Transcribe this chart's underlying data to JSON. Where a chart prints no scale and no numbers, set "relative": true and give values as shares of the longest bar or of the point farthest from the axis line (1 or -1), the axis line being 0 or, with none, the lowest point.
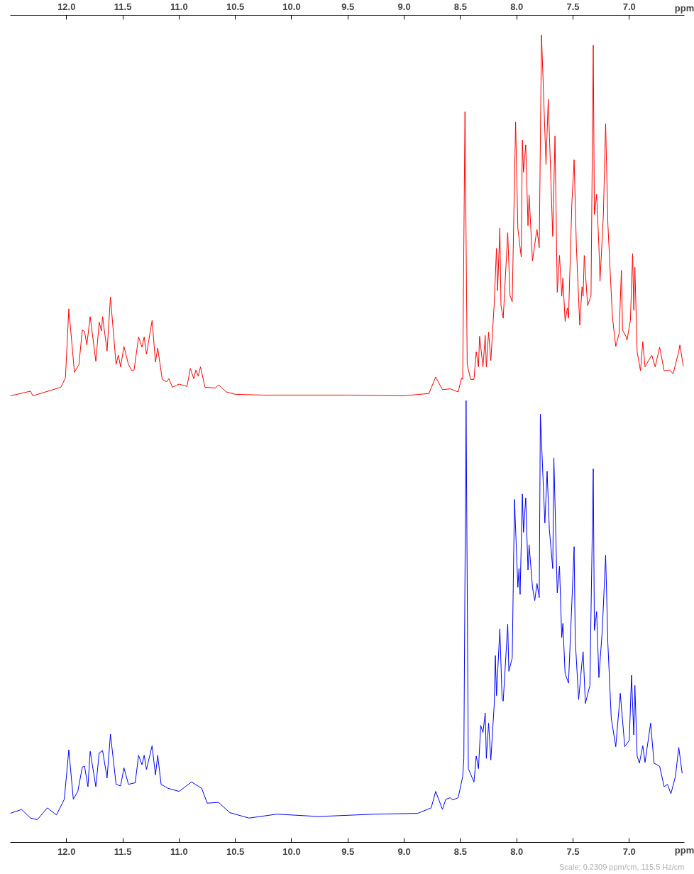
{
  "chart_data": {
    "type": "line",
    "relative": true,
    "xlabel": "ppm",
    "x2label": "ppm",
    "xlim": [
      12.5,
      6.51
    ],
    "x2lim": [
      12.5,
      6.51
    ],
    "xticks": [
      {
        "value": 12.0,
        "label": "12.0"
      },
      {
        "value": 11.5,
        "label": "11.5"
      },
      {
        "value": 11.0,
        "label": "11.0"
      },
      {
        "value": 10.5,
        "label": "10.5"
      },
      {
        "value": 10.0,
        "label": "10.0"
      },
      {
        "value": 9.5,
        "label": "9.5"
      },
      {
        "value": 9.0,
        "label": "9.0"
      },
      {
        "value": 8.5,
        "label": "8.5"
      },
      {
        "value": 8.0,
        "label": "8.0"
      },
      {
        "value": 7.5,
        "label": "7.5"
      },
      {
        "value": 7.0,
        "label": "7.0"
      }
    ],
    "x2ticks": [
      {
        "value": 12.0,
        "label": "12.0"
      },
      {
        "value": 11.5,
        "label": "11.5"
      },
      {
        "value": 11.0,
        "label": "11.0"
      },
      {
        "value": 10.5,
        "label": "10.5"
      },
      {
        "value": 10.0,
        "label": "10.0"
      },
      {
        "value": 9.5,
        "label": "9.5"
      },
      {
        "value": 9.0,
        "label": "9.0"
      },
      {
        "value": 8.5,
        "label": "8.5"
      },
      {
        "value": 8.0,
        "label": "8.0"
      },
      {
        "value": 7.5,
        "label": "7.5"
      },
      {
        "value": 7.0,
        "label": "7.0"
      }
    ],
    "series": [
      {
        "color": "#ff0000",
        "x": [
          12.5,
          12.32,
          12.3,
          12.12,
          12.05,
          12.01,
          11.98,
          11.93,
          11.89,
          11.86,
          11.84,
          11.82,
          11.79,
          11.74,
          11.71,
          11.69,
          11.68,
          11.64,
          11.61,
          11.56,
          11.54,
          11.52,
          11.49,
          11.45,
          11.42,
          11.4,
          11.36,
          11.33,
          11.31,
          11.29,
          11.24,
          11.21,
          11.19,
          11.15,
          11.11,
          11.09,
          11.06,
          11.0,
          10.93,
          10.9,
          10.87,
          10.85,
          10.83,
          10.81,
          10.77,
          10.68,
          10.65,
          10.58,
          10.5,
          10.25,
          10.0,
          9.51,
          9.01,
          8.78,
          8.72,
          8.66,
          8.59,
          8.52,
          8.49,
          8.48,
          8.46,
          8.44,
          8.41,
          8.38,
          8.36,
          8.34,
          8.33,
          8.3,
          8.28,
          8.27,
          8.25,
          8.23,
          8.2,
          8.18,
          8.17,
          8.15,
          8.14,
          8.12,
          8.08,
          8.06,
          8.04,
          8.01,
          7.99,
          7.96,
          7.95,
          7.94,
          7.92,
          7.9,
          7.89,
          7.86,
          7.83,
          7.82,
          7.8,
          7.78,
          7.74,
          7.72,
          7.68,
          7.66,
          7.64,
          7.62,
          7.6,
          7.59,
          7.57,
          7.55,
          7.54,
          7.51,
          7.49,
          7.47,
          7.44,
          7.42,
          7.41,
          7.4,
          7.37,
          7.34,
          7.32,
          7.31,
          7.29,
          7.27,
          7.26,
          7.23,
          7.21,
          7.19,
          7.15,
          7.12,
          7.09,
          7.07,
          7.06,
          7.03,
          7.02,
          6.99,
          6.97,
          6.96,
          6.95,
          6.93,
          6.9,
          6.88,
          6.86,
          6.8,
          6.77,
          6.73,
          6.69,
          6.64,
          6.61,
          6.56,
          6.55,
          6.52
        ],
        "values": [
          0.54,
          0.546,
          0.54,
          0.548,
          0.551,
          0.563,
          0.651,
          0.57,
          0.58,
          0.624,
          0.622,
          0.605,
          0.641,
          0.584,
          0.634,
          0.623,
          0.641,
          0.597,
          0.666,
          0.58,
          0.592,
          0.577,
          0.603,
          0.58,
          0.572,
          0.573,
          0.615,
          0.602,
          0.615,
          0.593,
          0.636,
          0.583,
          0.601,
          0.561,
          0.558,
          0.562,
          0.551,
          0.555,
          0.552,
          0.575,
          0.562,
          0.573,
          0.565,
          0.577,
          0.551,
          0.55,
          0.554,
          0.545,
          0.542,
          0.541,
          0.541,
          0.541,
          0.54,
          0.543,
          0.564,
          0.548,
          0.549,
          0.545,
          0.563,
          0.561,
          0.902,
          0.58,
          0.561,
          0.561,
          0.596,
          0.577,
          0.616,
          0.577,
          0.617,
          0.577,
          0.621,
          0.585,
          0.658,
          0.728,
          0.674,
          0.754,
          0.655,
          0.639,
          0.748,
          0.668,
          0.66,
          0.889,
          0.753,
          0.717,
          0.866,
          0.825,
          0.86,
          0.757,
          0.796,
          0.712,
          0.743,
          0.752,
          0.729,
          1.0,
          0.835,
          0.918,
          0.743,
          0.871,
          0.672,
          0.719,
          0.667,
          0.69,
          0.635,
          0.652,
          0.639,
          0.786,
          0.841,
          0.731,
          0.63,
          0.679,
          0.667,
          0.719,
          0.655,
          0.668,
          0.987,
          0.771,
          0.797,
          0.731,
          0.686,
          0.771,
          0.887,
          0.759,
          0.641,
          0.603,
          0.62,
          0.7,
          0.624,
          0.616,
          0.611,
          0.636,
          0.721,
          0.649,
          0.704,
          0.596,
          0.572,
          0.609,
          0.577,
          0.592,
          0.577,
          0.602,
          0.572,
          0.573,
          0.568,
          0.597,
          0.605,
          0.578
        ]
      },
      {
        "color": "#0000ff",
        "x": [
          12.5,
          12.4,
          12.32,
          12.26,
          12.17,
          12.09,
          12.02,
          11.98,
          11.94,
          11.9,
          11.86,
          11.84,
          11.81,
          11.79,
          11.74,
          11.71,
          11.68,
          11.64,
          11.61,
          11.56,
          11.52,
          11.49,
          11.45,
          11.39,
          11.36,
          11.33,
          11.31,
          11.29,
          11.24,
          11.21,
          11.19,
          11.16,
          11.1,
          11.0,
          10.89,
          10.8,
          10.75,
          10.65,
          10.55,
          10.38,
          10.13,
          9.76,
          9.26,
          8.88,
          8.76,
          8.72,
          8.66,
          8.63,
          8.59,
          8.57,
          8.52,
          8.48,
          8.47,
          8.45,
          8.43,
          8.38,
          8.36,
          8.34,
          8.32,
          8.3,
          8.28,
          8.27,
          8.25,
          8.23,
          8.2,
          8.19,
          8.18,
          8.15,
          8.13,
          8.12,
          8.08,
          8.07,
          8.04,
          8.02,
          7.99,
          7.98,
          7.97,
          7.95,
          7.94,
          7.92,
          7.9,
          7.89,
          7.86,
          7.84,
          7.82,
          7.8,
          7.79,
          7.75,
          7.73,
          7.71,
          7.68,
          7.67,
          7.64,
          7.62,
          7.6,
          7.59,
          7.57,
          7.54,
          7.51,
          7.49,
          7.48,
          7.45,
          7.42,
          7.41,
          7.39,
          7.35,
          7.32,
          7.31,
          7.29,
          7.27,
          7.24,
          7.21,
          7.19,
          7.16,
          7.12,
          7.08,
          7.04,
          7.0,
          6.98,
          6.96,
          6.95,
          6.93,
          6.91,
          6.88,
          6.86,
          6.81,
          6.78,
          6.73,
          6.69,
          6.66,
          6.63,
          6.59,
          6.56,
          6.53
        ],
        "values": [
          0.008,
          0.013,
          0.002,
          0.0,
          0.015,
          0.006,
          0.026,
          0.089,
          0.026,
          0.036,
          0.067,
          0.068,
          0.042,
          0.087,
          0.042,
          0.085,
          0.088,
          0.053,
          0.109,
          0.045,
          0.043,
          0.066,
          0.045,
          0.047,
          0.082,
          0.07,
          0.082,
          0.064,
          0.094,
          0.057,
          0.082,
          0.045,
          0.04,
          0.036,
          0.048,
          0.04,
          0.021,
          0.022,
          0.009,
          0.002,
          0.007,
          0.004,
          0.007,
          0.008,
          0.015,
          0.036,
          0.013,
          0.026,
          0.028,
          0.025,
          0.028,
          0.055,
          0.078,
          0.534,
          0.065,
          0.048,
          0.081,
          0.065,
          0.12,
          0.111,
          0.136,
          0.078,
          0.123,
          0.076,
          0.147,
          0.209,
          0.158,
          0.243,
          0.154,
          0.151,
          0.249,
          0.189,
          0.206,
          0.408,
          0.296,
          0.32,
          0.287,
          0.415,
          0.366,
          0.41,
          0.318,
          0.35,
          0.296,
          0.279,
          0.301,
          0.283,
          0.517,
          0.378,
          0.444,
          0.37,
          0.32,
          0.461,
          0.289,
          0.323,
          0.232,
          0.25,
          0.186,
          0.174,
          0.277,
          0.348,
          0.229,
          0.153,
          0.201,
          0.214,
          0.148,
          0.171,
          0.447,
          0.241,
          0.265,
          0.181,
          0.241,
          0.337,
          0.224,
          0.129,
          0.093,
          0.161,
          0.093,
          0.101,
          0.184,
          0.108,
          0.171,
          0.081,
          0.072,
          0.094,
          0.073,
          0.123,
          0.072,
          0.068,
          0.042,
          0.045,
          0.033,
          0.055,
          0.092,
          0.059
        ]
      }
    ],
    "annotations": [
      "Scale: 0.2309 ppm/cm, 115.5 Hz/cm"
    ]
  }
}
